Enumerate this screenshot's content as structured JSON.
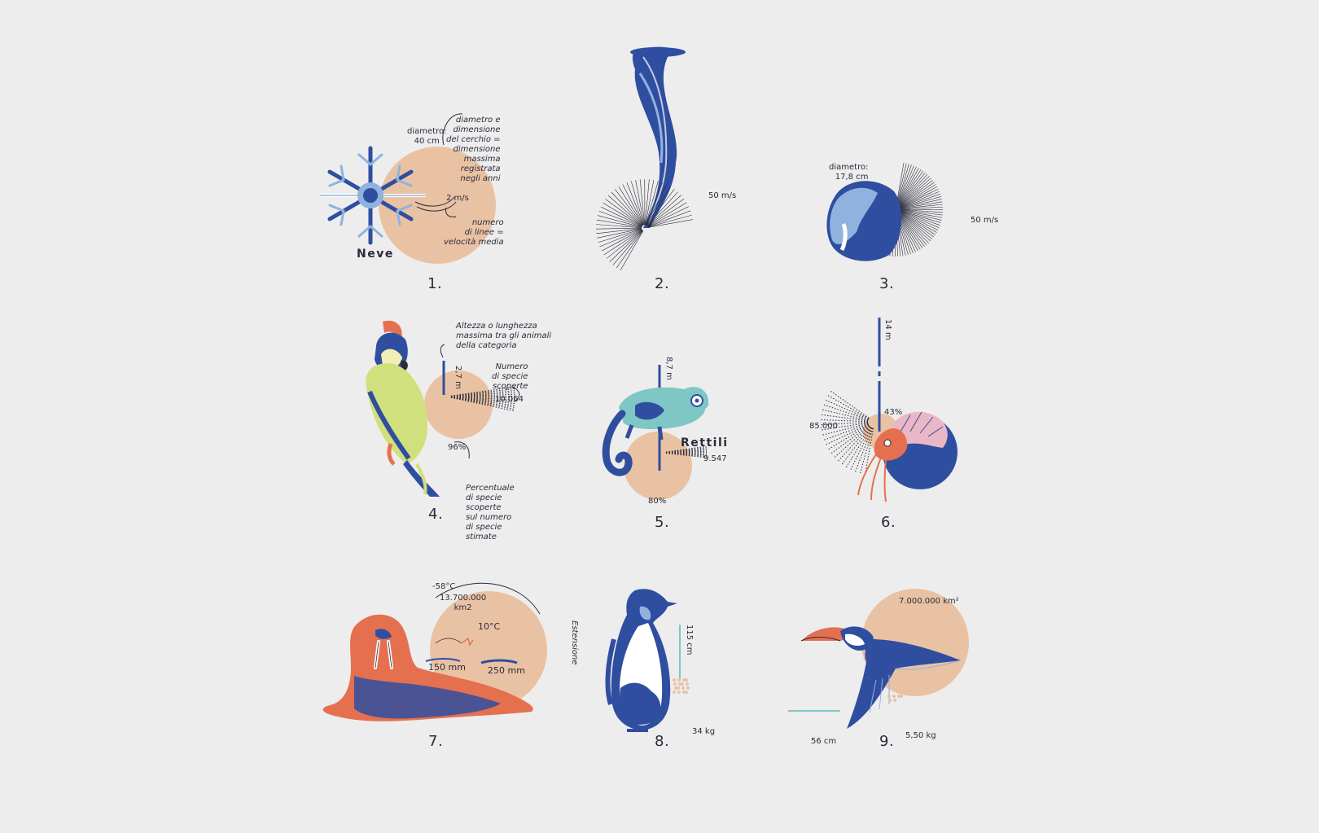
{
  "colors": {
    "background": "#ededed",
    "peach": "#e9c2a4",
    "blue": "#2f4ea0",
    "lightblue": "#8fb3de",
    "teal": "#7ec7c4",
    "orange": "#e5704f",
    "yellowgreen": "#cfe07c"
  },
  "panels": [
    {
      "number": "1.",
      "icon": "snowflake-icon",
      "title": "Neve",
      "diameter_label": "diametro:\n40 cm",
      "speed_label": "2 m/s",
      "note_circle": "diametro e\ndimensione\ndel cerchio =\ndimensione\nmassima\nregistrata\nnegli anni",
      "note_lines": "numero\ndi linee =\nvelocità media"
    },
    {
      "number": "2.",
      "icon": "tornado-icon",
      "speed_label": "50 m/s"
    },
    {
      "number": "3.",
      "icon": "hailstone-icon",
      "diameter_label": "diametro:\n17,8 cm",
      "speed_label": "50 m/s"
    },
    {
      "number": "4.",
      "icon": "parrot-icon",
      "height_label": "2,7 m",
      "species_label": "10.064",
      "percent_label": "96%",
      "note_height": "Altezza o lunghezza\nmassima tra gli animali\ndella categoria",
      "note_species": "Numero\ndi specie\nscoperte",
      "note_percent": "Percentuale\ndi specie\nscoperte\nsul numero\ndi specie\nstimate"
    },
    {
      "number": "5.",
      "icon": "chameleon-icon",
      "title": "Rettili",
      "height_label": "8,7 m",
      "species_label": "9.547",
      "percent_label": "80%"
    },
    {
      "number": "6.",
      "icon": "nautilus-icon",
      "height_label": "14 m",
      "species_label": "85.000",
      "percent_label": "43%"
    },
    {
      "number": "7.",
      "icon": "walrus-icon",
      "temp_min": "-58°C",
      "area_label": "13.700.000\nkm2",
      "temp_max": "10°C",
      "rain_min": "150 mm",
      "rain_max": "250 mm",
      "extension_label": "Estensione"
    },
    {
      "number": "8.",
      "icon": "penguin-icon",
      "height_label": "115 cm",
      "weight_label": "34 kg"
    },
    {
      "number": "9.",
      "icon": "toucan-icon",
      "area_label": "7.000.000 km²",
      "length_label": "56 cm",
      "weight_label": "5,50 kg"
    }
  ]
}
